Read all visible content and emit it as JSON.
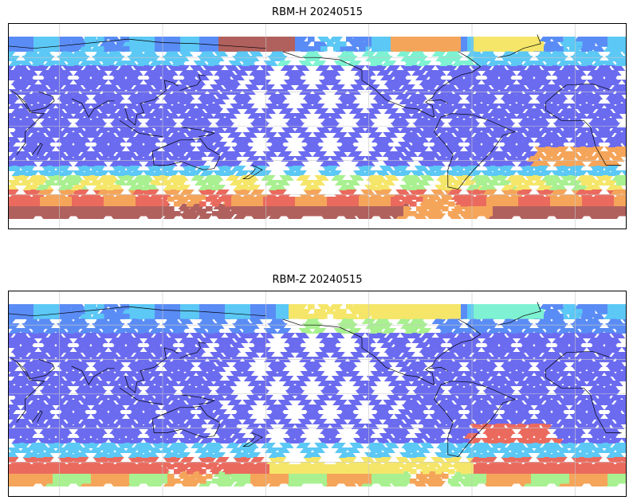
{
  "panels": [
    {
      "title": "RBM-H 20240515",
      "colors": {
        "cold": "#6b6bf0",
        "blue2": "#5a8cf5",
        "cyan": "#5cc8f5",
        "aqua": "#7ef2d2",
        "green": "#a8f090",
        "yellow": "#f5e66a",
        "orange": "#f5a55a",
        "red": "#eb6a5e",
        "darkred": "#b0615e"
      }
    },
    {
      "title": "RBM-Z 20240515",
      "colors": {
        "cold": "#6b6bf0",
        "blue2": "#5a8cf5",
        "cyan": "#5cc8f5",
        "aqua": "#7ef2d2",
        "green": "#a8f090",
        "yellow": "#f5e66a",
        "orange": "#f5a55a",
        "red": "#eb6a5e",
        "darkred": "#b0615e"
      }
    }
  ],
  "frame_color": "#000000",
  "grid_color": "#c8c8c8",
  "coast_color": "#000000"
}
